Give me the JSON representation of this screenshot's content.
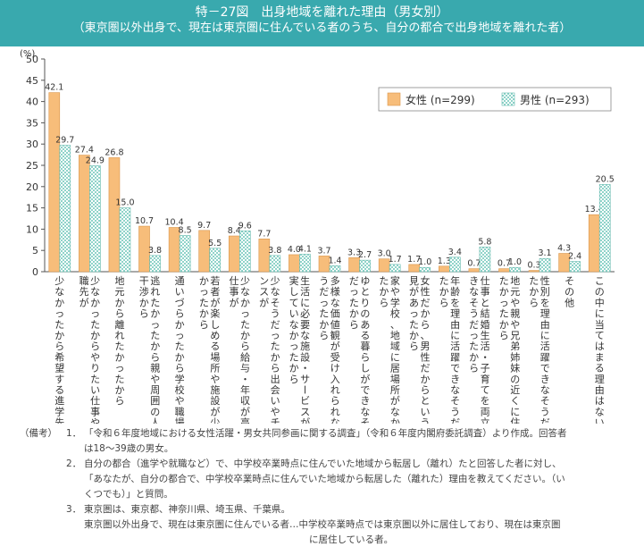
{
  "header": {
    "title": "特－27図　出身地域を離れた理由（男女別）",
    "subtitle": "（東京圏以外出身で、現在は東京圏に住んでいる者のうち、自分の都合で出身地域を離れた者）"
  },
  "chart_data": {
    "type": "bar",
    "yunit": "(%)",
    "ylim": [
      0,
      50
    ],
    "yticks": [
      0,
      5,
      10,
      15,
      20,
      25,
      30,
      35,
      40,
      45,
      50
    ],
    "legend_position": "top-right",
    "categories": [
      "少なかったから希望する進学先が",
      "少なかったからやりたい仕事や就職先が",
      "地元から離れたかったから",
      "逃れたかったから親や周囲の人の干渉から",
      "通いづらかったから学校や職場に",
      "若者が楽しめる場所や施設が少なかったから",
      "少なかったから給与・年収が高い仕事が",
      "少なそうだったから出会いやチャンスが",
      "生活に必要な施設・サービスが充実していなかったから",
      "多様な価値観が受け入れられなそうだったから",
      "ゆとりのある暮らしができなそうだったから",
      "家や学校、地域に居場所がなかったから",
      "女性だから、男性だからという偏見があったから",
      "年齢を理由に活躍できなそうだったから",
      "仕事と結婚生活・子育てを両立できなそうだったから",
      "地元や親や兄弟姉妹の近くに住みたかったから",
      "性別を理由に活躍できなそうだったから",
      "その他",
      "この中に当てはまる理由はない"
    ],
    "series": [
      {
        "name": "女性 (n=299)",
        "color": "#f7bd7a",
        "values": [
          42.1,
          27.4,
          26.8,
          10.7,
          10.4,
          9.7,
          8.4,
          7.7,
          4.0,
          3.7,
          3.3,
          3.0,
          1.7,
          1.3,
          0.7,
          0.7,
          0.3,
          4.3,
          13.4
        ]
      },
      {
        "name": "男性 (n=293)",
        "color": "#8fd3c9",
        "values": [
          29.7,
          24.9,
          15.0,
          3.8,
          8.5,
          5.5,
          9.6,
          3.8,
          4.1,
          1.4,
          2.7,
          1.7,
          1.0,
          3.4,
          5.8,
          1.0,
          3.1,
          2.4,
          20.5
        ]
      }
    ]
  },
  "notes": {
    "label": "（備考）",
    "items": [
      {
        "num": "1．",
        "lines": [
          "「令和６年度地域における女性活躍・男女共同参画に関する調査」（令和６年度内閣府委託調査）より作成。回答者",
          "は18～39歳の男女。"
        ]
      },
      {
        "num": "2．",
        "lines": [
          "自分の都合（進学や就職など）で、中学校卒業時点に住んでいた地域から転居し（離れ）たと回答した者に対し、",
          "「あなたが、自分の都合で、中学校卒業時点に住んでいた地域から転居した（離れた）理由を教えてください。（い",
          "くつでも）」と質問。"
        ]
      },
      {
        "num": "3．",
        "lines": [
          "東京圏は、東京都、神奈川県、埼玉県、千葉県。",
          "東京圏以外出身で、現在は東京圏に住んでいる者…中学校卒業時点では東京圏以外に居住しており、現在は東京圏",
          "　　　　　　　　　　　　　　　　　　　　　　　　に居住している者。"
        ]
      }
    ]
  }
}
